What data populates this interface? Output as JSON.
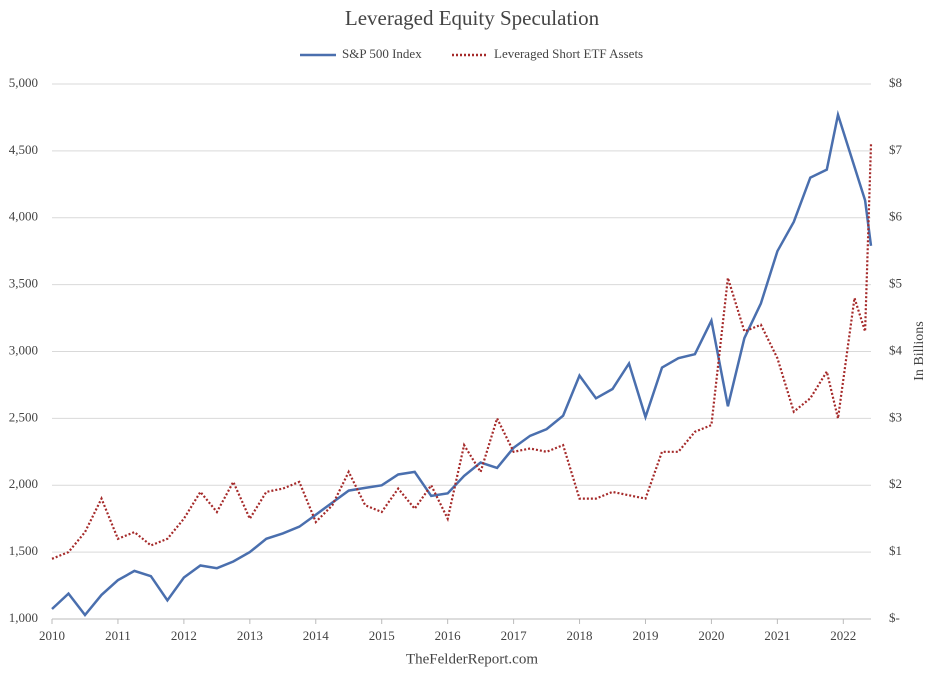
{
  "chart_data": {
    "type": "line",
    "title": "Leveraged Equity Speculation",
    "source": "TheFelderReport.com",
    "y2label": "In Billions",
    "x": [
      2010,
      2010.25,
      2010.5,
      2010.75,
      2011,
      2011.25,
      2011.5,
      2011.75,
      2012,
      2012.25,
      2012.5,
      2012.75,
      2013,
      2013.25,
      2013.5,
      2013.75,
      2014,
      2014.25,
      2014.5,
      2014.75,
      2015,
      2015.25,
      2015.5,
      2015.75,
      2016,
      2016.25,
      2016.5,
      2016.75,
      2017,
      2017.25,
      2017.5,
      2017.75,
      2018,
      2018.25,
      2018.5,
      2018.75,
      2019,
      2019.25,
      2019.5,
      2019.75,
      2020,
      2020.25,
      2020.5,
      2020.75,
      2021,
      2021.25,
      2021.5,
      2021.75,
      2021.92,
      2022.17,
      2022.33,
      2022.42
    ],
    "xlim": [
      2010,
      2022.42
    ],
    "xticks": [
      2010,
      2011,
      2012,
      2013,
      2014,
      2015,
      2016,
      2017,
      2018,
      2019,
      2020,
      2021,
      2022
    ],
    "ylim": [
      1000,
      5000
    ],
    "yticks": [
      {
        "value": 1000,
        "label": "1,000"
      },
      {
        "value": 1500,
        "label": "1,500"
      },
      {
        "value": 2000,
        "label": "2,000"
      },
      {
        "value": 2500,
        "label": "2,500"
      },
      {
        "value": 3000,
        "label": "3,000"
      },
      {
        "value": 3500,
        "label": "3,500"
      },
      {
        "value": 4000,
        "label": "4,000"
      },
      {
        "value": 4500,
        "label": "4,500"
      },
      {
        "value": 5000,
        "label": "5,000"
      }
    ],
    "y2lim": [
      0,
      8
    ],
    "y2ticks": [
      {
        "value": 0,
        "label": "$-"
      },
      {
        "value": 1,
        "label": "$1"
      },
      {
        "value": 2,
        "label": "$2"
      },
      {
        "value": 3,
        "label": "$3"
      },
      {
        "value": 4,
        "label": "$4"
      },
      {
        "value": 5,
        "label": "$5"
      },
      {
        "value": 6,
        "label": "$6"
      },
      {
        "value": 7,
        "label": "$7"
      },
      {
        "value": 8,
        "label": "$8"
      }
    ],
    "grid": true,
    "legend": "top",
    "series": [
      {
        "name": "S&P 500 Index",
        "color": "#4a6fae",
        "style": "solid",
        "values": [
          1075,
          1190,
          1030,
          1180,
          1290,
          1360,
          1320,
          1140,
          1310,
          1400,
          1380,
          1430,
          1500,
          1600,
          1640,
          1690,
          1780,
          1870,
          1960,
          1980,
          2000,
          2080,
          2100,
          1920,
          1940,
          2070,
          2170,
          2130,
          2280,
          2370,
          2420,
          2520,
          2820,
          2650,
          2720,
          2910,
          2510,
          2880,
          2950,
          2980,
          3230,
          2590,
          3100,
          3360,
          3750,
          3970,
          4300,
          4360,
          4770,
          4380,
          4130,
          3790
        ]
      },
      {
        "name": "Leveraged Short ETF Assets",
        "color": "#a52a2a",
        "style": "dotted",
        "axis": "y2",
        "values": [
          0.9,
          1.0,
          1.3,
          1.8,
          1.2,
          1.3,
          1.1,
          1.2,
          1.5,
          1.9,
          1.6,
          2.05,
          1.5,
          1.9,
          1.95,
          2.05,
          1.45,
          1.7,
          2.2,
          1.7,
          1.6,
          1.95,
          1.65,
          2.0,
          1.5,
          2.6,
          2.2,
          3.0,
          2.5,
          2.55,
          2.5,
          2.6,
          1.8,
          1.8,
          1.9,
          1.85,
          1.8,
          2.5,
          2.5,
          2.8,
          2.9,
          5.1,
          4.3,
          4.4,
          3.9,
          3.1,
          3.3,
          3.7,
          3.0,
          4.8,
          4.3,
          7.1
        ]
      }
    ]
  }
}
